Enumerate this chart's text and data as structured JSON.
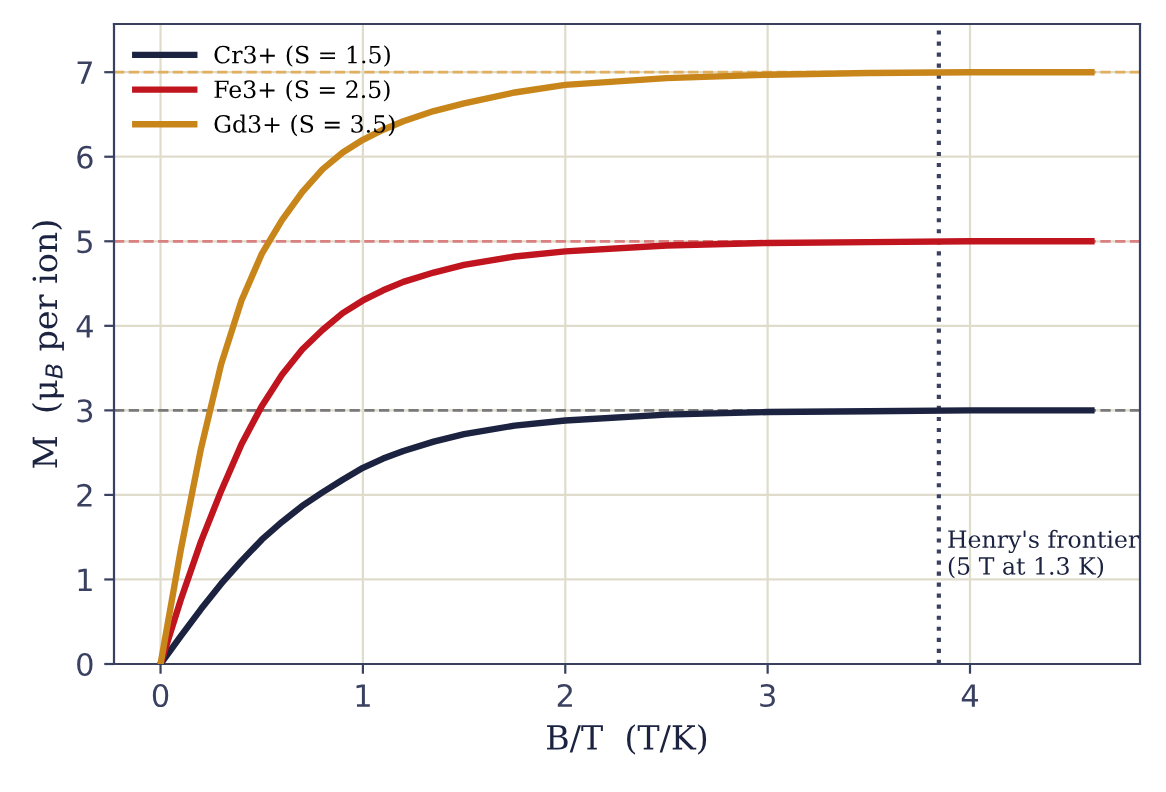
{
  "chart_data": {
    "type": "line",
    "xlabel": "B/T  (T/K)",
    "ylabel": "M  (μ$_{B}$ per ion)",
    "x": [
      0,
      0.1,
      0.2,
      0.3,
      0.4,
      0.5,
      0.6,
      0.7,
      0.8,
      0.9,
      1.0,
      1.1,
      1.2,
      1.35,
      1.5,
      1.75,
      2.0,
      2.5,
      3.0,
      3.5,
      4.0,
      4.6
    ],
    "series": [
      {
        "name": "Cr3+ (S = 1.5)",
        "color": "#1b2340",
        "values": [
          0,
          0.33,
          0.65,
          0.95,
          1.22,
          1.47,
          1.68,
          1.87,
          2.03,
          2.18,
          2.32,
          2.43,
          2.52,
          2.63,
          2.72,
          2.82,
          2.88,
          2.95,
          2.98,
          2.99,
          3.0,
          3.0
        ]
      },
      {
        "name": "Fe3+ (S = 2.5)",
        "color": "#c0141e",
        "values": [
          0,
          0.76,
          1.45,
          2.05,
          2.6,
          3.05,
          3.42,
          3.72,
          3.95,
          4.15,
          4.3,
          4.42,
          4.52,
          4.63,
          4.72,
          4.82,
          4.88,
          4.95,
          4.98,
          4.99,
          5.0,
          5.0
        ]
      },
      {
        "name": "Gd3+ (S = 3.5)",
        "color": "#c8861a",
        "values": [
          0,
          1.35,
          2.55,
          3.55,
          4.3,
          4.85,
          5.25,
          5.58,
          5.85,
          6.05,
          6.2,
          6.32,
          6.42,
          6.54,
          6.63,
          6.76,
          6.85,
          6.93,
          6.97,
          6.99,
          7.0,
          7.0
        ]
      }
    ],
    "ref_lines": [
      {
        "axis": "y",
        "value": 3,
        "color": "#7a7a7a",
        "line_style": "dashed"
      },
      {
        "axis": "y",
        "value": 5,
        "color": "#d98080",
        "line_style": "dashed"
      },
      {
        "axis": "y",
        "value": 7,
        "color": "#e0b060",
        "line_style": "dashed"
      },
      {
        "axis": "x",
        "value": 3.846,
        "color": "#3a4060",
        "line_style": "dotted",
        "label": "Henry's frontier\n(5 T at 1.3 K)"
      }
    ],
    "xlim": [
      -0.23,
      4.84
    ],
    "ylim": [
      0,
      7.57
    ],
    "xticks": [
      0,
      1,
      2,
      3,
      4
    ],
    "yticks": [
      0,
      1,
      2,
      3,
      4,
      5,
      6,
      7
    ],
    "grid": true,
    "legend": "top left",
    "marker": "none",
    "line_style": "solid"
  }
}
